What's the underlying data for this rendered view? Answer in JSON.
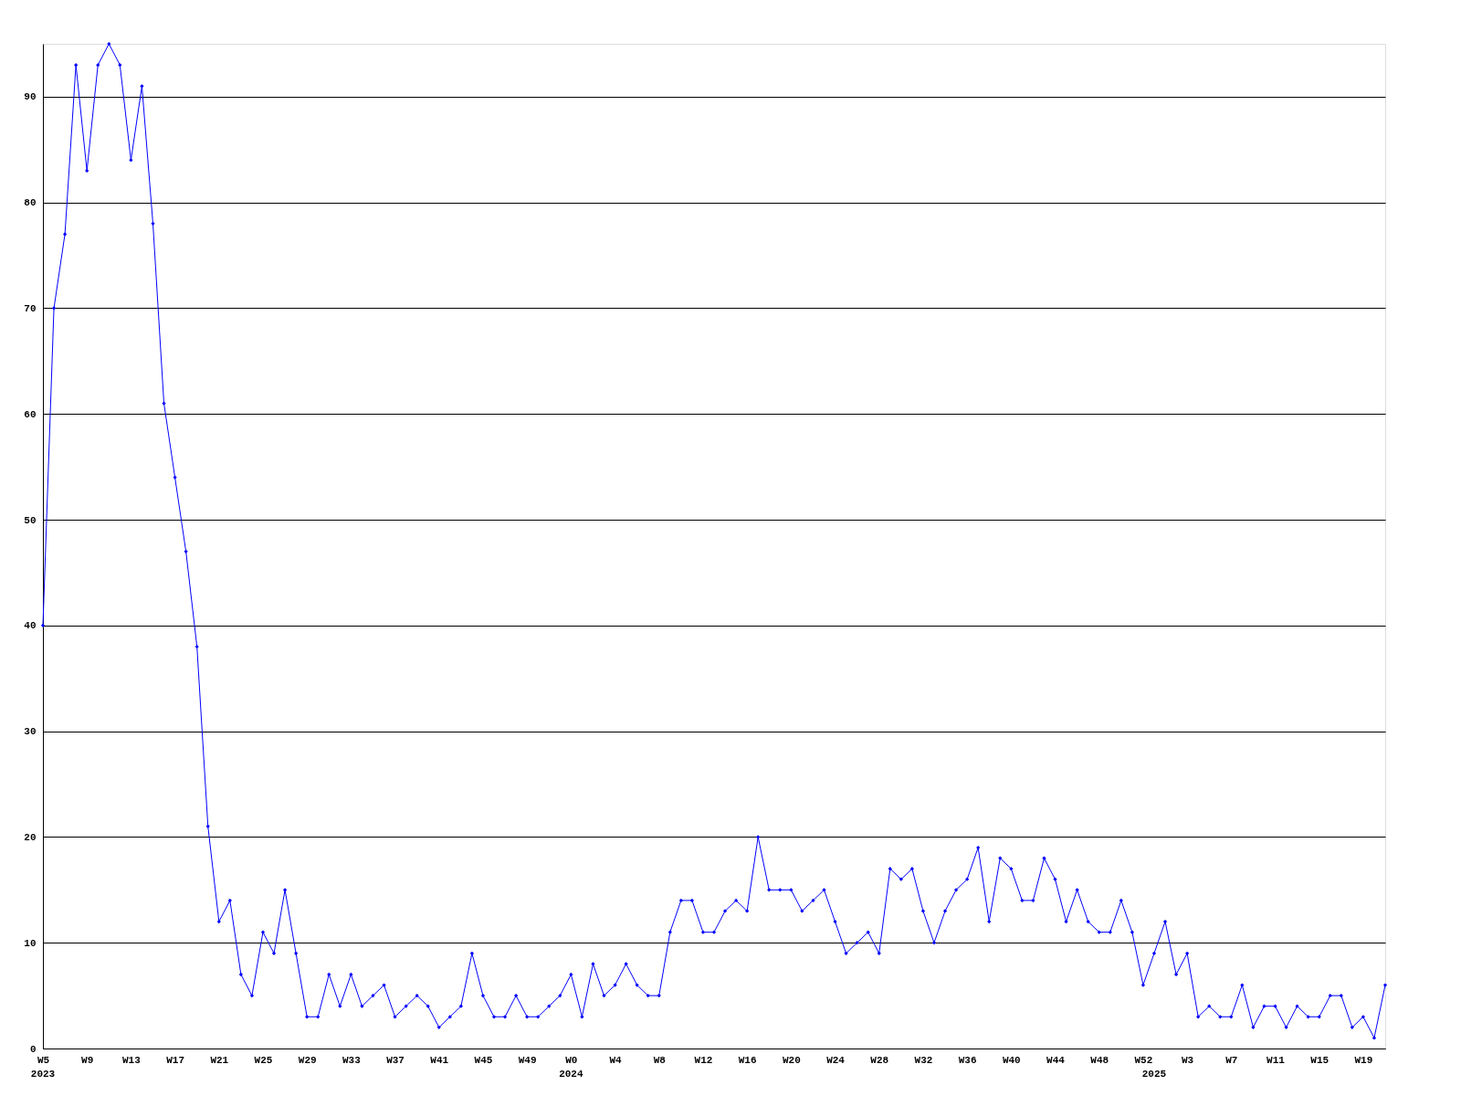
{
  "chart_data": {
    "type": "line",
    "categories": [
      "W5",
      null,
      null,
      null,
      "W9",
      null,
      null,
      null,
      "W13",
      null,
      null,
      null,
      "W17",
      null,
      null,
      null,
      "W21",
      null,
      null,
      null,
      "W25",
      null,
      null,
      null,
      "W29",
      null,
      null,
      null,
      "W33",
      null,
      null,
      null,
      "W37",
      null,
      null,
      null,
      "W41",
      null,
      null,
      null,
      "W45",
      null,
      null,
      null,
      "W49",
      null,
      null,
      null,
      "W0",
      null,
      null,
      null,
      "W4",
      null,
      null,
      null,
      "W8",
      null,
      null,
      null,
      "W12",
      null,
      null,
      null,
      "W16",
      null,
      null,
      null,
      "W20",
      null,
      null,
      null,
      "W24",
      null,
      null,
      null,
      "W28",
      null,
      null,
      null,
      "W32",
      null,
      null,
      null,
      "W36",
      null,
      null,
      null,
      "W40",
      null,
      null,
      null,
      "W44",
      null,
      null,
      null,
      "W48",
      null,
      null,
      null,
      "W52",
      null,
      null,
      null,
      "W3",
      null,
      null,
      null,
      "W7",
      null,
      null,
      null,
      "W11",
      null,
      null,
      null,
      "W15",
      null,
      null,
      null,
      "W19",
      null,
      null
    ],
    "series": [
      {
        "color": "#0000ff",
        "values": [
          40,
          70,
          77,
          93,
          83,
          93,
          95,
          93,
          84,
          91,
          78,
          61,
          54,
          47,
          38,
          21,
          12,
          14,
          7,
          5,
          11,
          9,
          15,
          9,
          3,
          3,
          7,
          4,
          7,
          4,
          5,
          6,
          3,
          4,
          5,
          4,
          2,
          3,
          4,
          9,
          5,
          3,
          3,
          5,
          3,
          3,
          4,
          5,
          7,
          3,
          8,
          5,
          6,
          8,
          6,
          5,
          5,
          11,
          14,
          14,
          11,
          11,
          13,
          14,
          13,
          20,
          15,
          15,
          15,
          13,
          14,
          15,
          12,
          9,
          10,
          11,
          9,
          17,
          16,
          17,
          13,
          10,
          13,
          15,
          16,
          19,
          12,
          18,
          17,
          14,
          14,
          18,
          16,
          12,
          15,
          12,
          11,
          11,
          14,
          11,
          6,
          9,
          12,
          7,
          9,
          3,
          4,
          3,
          3,
          6,
          2,
          4,
          4,
          2,
          4,
          3,
          3,
          5,
          5,
          2,
          3,
          1,
          6
        ]
      }
    ],
    "annotations": [
      "2023",
      "2024",
      "2025"
    ],
    "ylim": [
      0,
      95
    ],
    "yticks": [
      0,
      10,
      20,
      30,
      40,
      50,
      60,
      70,
      80,
      90
    ],
    "grid": "y",
    "marker": "diamond",
    "line_style": "solid"
  }
}
